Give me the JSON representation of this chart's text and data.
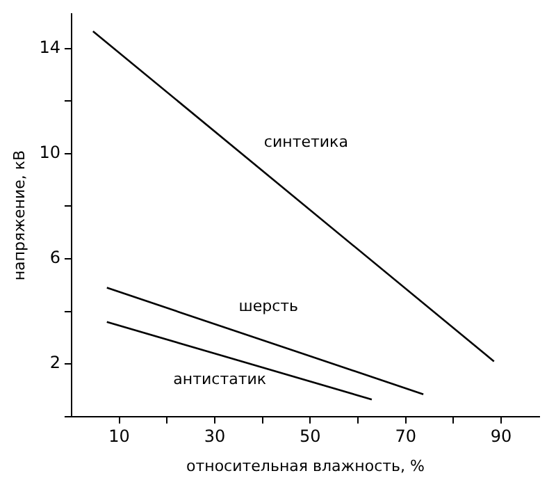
{
  "chart_data": {
    "type": "line",
    "xlabel": "относительная влажность, %",
    "ylabel": "напряжение, кВ",
    "xlim": [
      0,
      98
    ],
    "xticks": [
      10,
      {
        "value": 20,
        "label": null
      },
      30,
      {
        "value": 40,
        "label": null
      },
      50,
      {
        "value": 60,
        "label": null
      },
      70,
      {
        "value": 80,
        "label": null
      },
      90
    ],
    "ylim": [
      0,
      15.3
    ],
    "yticks": [
      {
        "value": 0,
        "label": null
      },
      2,
      {
        "value": 4,
        "label": null
      },
      6,
      {
        "value": 8,
        "label": null
      },
      10,
      {
        "value": 12,
        "label": null
      },
      14
    ],
    "grid": false,
    "legend": false,
    "marker": "none",
    "line_style": "solid",
    "series": [
      {
        "name": "синтетика",
        "color": "#000000",
        "x": [
          4.5,
          88.5
        ],
        "values": [
          14.65,
          2.1
        ]
      },
      {
        "name": "шерсть",
        "color": "#000000",
        "x": [
          7.4,
          73.7
        ],
        "values": [
          4.9,
          0.85
        ]
      },
      {
        "name": "антистатик",
        "color": "#000000",
        "x": [
          7.4,
          62.9
        ],
        "values": [
          3.6,
          0.65
        ]
      }
    ]
  }
}
